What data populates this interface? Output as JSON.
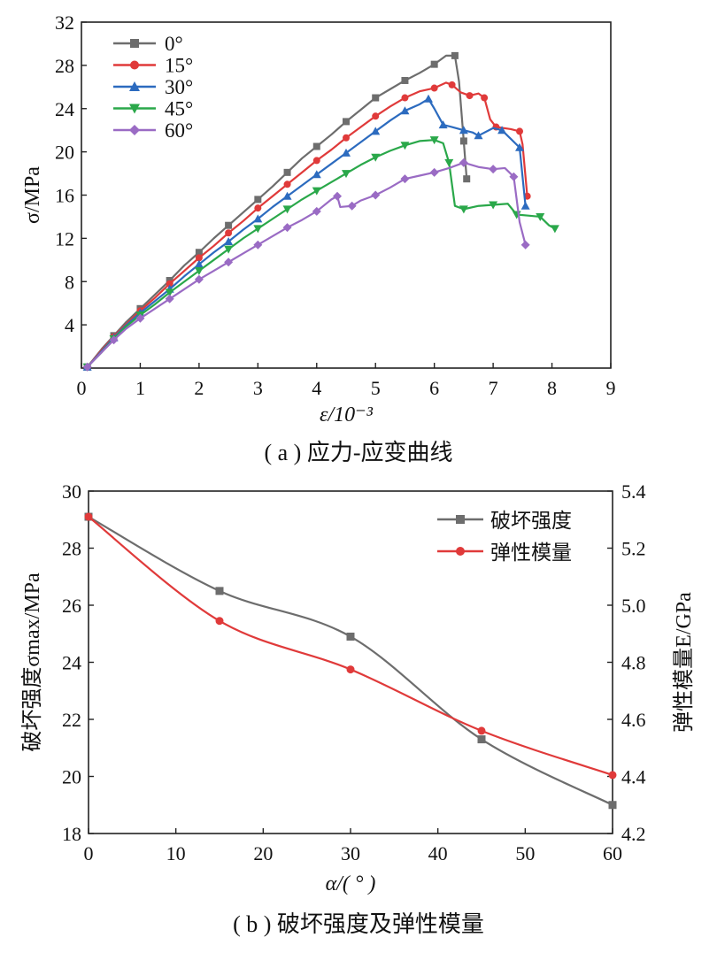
{
  "charts": [
    {
      "caption": "( a ) 应力-应变曲线",
      "chart_data": {
        "type": "line",
        "xlabel": "ε/10⁻³",
        "ylabel": "σ/MPa",
        "xlim": [
          0,
          9
        ],
        "ylim": [
          0,
          32
        ],
        "xticks": [
          0,
          1,
          2,
          3,
          4,
          5,
          6,
          7,
          8,
          9
        ],
        "yticks": [
          4,
          8,
          12,
          16,
          20,
          24,
          28,
          32
        ],
        "legend_position": "top-left",
        "series": [
          {
            "name": "0°",
            "color": "#6d6d6d",
            "marker": "square",
            "points": [
              [
                0.1,
                0.1
              ],
              [
                0.35,
                1.8
              ],
              [
                0.55,
                3
              ],
              [
                0.75,
                4.2
              ],
              [
                1.0,
                5.5
              ],
              [
                1.25,
                6.8
              ],
              [
                1.5,
                8.1
              ],
              [
                1.75,
                9.5
              ],
              [
                2.0,
                10.7
              ],
              [
                2.25,
                12
              ],
              [
                2.5,
                13.2
              ],
              [
                2.75,
                14.4
              ],
              [
                3.0,
                15.6
              ],
              [
                3.25,
                16.8
              ],
              [
                3.5,
                18.1
              ],
              [
                3.75,
                19.4
              ],
              [
                4.0,
                20.5
              ],
              [
                4.25,
                21.6
              ],
              [
                4.5,
                22.8
              ],
              [
                4.75,
                23.9
              ],
              [
                5.0,
                25.0
              ],
              [
                5.25,
                25.8
              ],
              [
                5.5,
                26.6
              ],
              [
                5.75,
                27.3
              ],
              [
                6.0,
                28.1
              ],
              [
                6.2,
                28.9
              ],
              [
                6.35,
                28.9
              ],
              [
                6.42,
                26.5
              ],
              [
                6.5,
                21.0
              ],
              [
                6.55,
                17.5
              ]
            ]
          },
          {
            "name": "15°",
            "color": "#e03a3a",
            "marker": "circle",
            "points": [
              [
                0.1,
                0.1
              ],
              [
                0.35,
                1.7
              ],
              [
                0.55,
                2.9
              ],
              [
                0.75,
                4.0
              ],
              [
                1.0,
                5.3
              ],
              [
                1.25,
                6.5
              ],
              [
                1.5,
                7.8
              ],
              [
                1.75,
                9.0
              ],
              [
                2.0,
                10.2
              ],
              [
                2.25,
                11.3
              ],
              [
                2.5,
                12.5
              ],
              [
                2.75,
                13.6
              ],
              [
                3.0,
                14.8
              ],
              [
                3.25,
                15.9
              ],
              [
                3.5,
                17.0
              ],
              [
                3.75,
                18.1
              ],
              [
                4.0,
                19.2
              ],
              [
                4.25,
                20.2
              ],
              [
                4.5,
                21.3
              ],
              [
                4.75,
                22.3
              ],
              [
                5.0,
                23.3
              ],
              [
                5.25,
                24.2
              ],
              [
                5.5,
                25.0
              ],
              [
                5.75,
                25.6
              ],
              [
                6.0,
                25.9
              ],
              [
                6.2,
                26.4
              ],
              [
                6.3,
                26.2
              ],
              [
                6.45,
                25.5
              ],
              [
                6.6,
                25.2
              ],
              [
                6.75,
                25.4
              ],
              [
                6.85,
                25.0
              ],
              [
                6.95,
                23.0
              ],
              [
                7.05,
                22.3
              ],
              [
                7.3,
                22.1
              ],
              [
                7.45,
                21.9
              ],
              [
                7.5,
                20.7
              ],
              [
                7.58,
                15.9
              ]
            ]
          },
          {
            "name": "30°",
            "color": "#2c6bbf",
            "marker": "triangle",
            "points": [
              [
                0.1,
                0.1
              ],
              [
                0.35,
                1.6
              ],
              [
                0.55,
                2.8
              ],
              [
                0.75,
                3.9
              ],
              [
                1.0,
                5.1
              ],
              [
                1.25,
                6.2
              ],
              [
                1.5,
                7.3
              ],
              [
                1.75,
                8.5
              ],
              [
                2.0,
                9.6
              ],
              [
                2.25,
                10.7
              ],
              [
                2.5,
                11.7
              ],
              [
                2.75,
                12.8
              ],
              [
                3.0,
                13.8
              ],
              [
                3.25,
                14.9
              ],
              [
                3.5,
                15.9
              ],
              [
                3.75,
                16.9
              ],
              [
                4.0,
                17.9
              ],
              [
                4.25,
                18.9
              ],
              [
                4.5,
                19.9
              ],
              [
                4.75,
                20.9
              ],
              [
                5.0,
                21.9
              ],
              [
                5.25,
                22.9
              ],
              [
                5.5,
                23.8
              ],
              [
                5.75,
                24.4
              ],
              [
                5.9,
                24.9
              ],
              [
                6.0,
                24.0
              ],
              [
                6.15,
                22.5
              ],
              [
                6.3,
                22.3
              ],
              [
                6.5,
                22.0
              ],
              [
                6.65,
                21.8
              ],
              [
                6.75,
                21.5
              ],
              [
                7.0,
                22.2
              ],
              [
                7.15,
                22.0
              ],
              [
                7.3,
                21.2
              ],
              [
                7.45,
                20.4
              ],
              [
                7.55,
                15.0
              ]
            ]
          },
          {
            "name": "45°",
            "color": "#2aa84a",
            "marker": "triangle-down",
            "points": [
              [
                0.1,
                0.1
              ],
              [
                0.35,
                1.5
              ],
              [
                0.55,
                2.7
              ],
              [
                0.75,
                3.8
              ],
              [
                1.0,
                4.9
              ],
              [
                1.25,
                5.9
              ],
              [
                1.5,
                7.0
              ],
              [
                1.75,
                8.0
              ],
              [
                2.0,
                9.0
              ],
              [
                2.25,
                10.0
              ],
              [
                2.5,
                11.0
              ],
              [
                2.75,
                12.0
              ],
              [
                3.0,
                12.9
              ],
              [
                3.25,
                13.8
              ],
              [
                3.5,
                14.7
              ],
              [
                3.75,
                15.6
              ],
              [
                4.0,
                16.4
              ],
              [
                4.25,
                17.2
              ],
              [
                4.5,
                18.0
              ],
              [
                4.75,
                18.8
              ],
              [
                5.0,
                19.5
              ],
              [
                5.25,
                20.1
              ],
              [
                5.5,
                20.6
              ],
              [
                5.75,
                21.0
              ],
              [
                6.0,
                21.1
              ],
              [
                6.15,
                20.8
              ],
              [
                6.25,
                19.0
              ],
              [
                6.35,
                15.0
              ],
              [
                6.5,
                14.7
              ],
              [
                6.75,
                15.0
              ],
              [
                7.0,
                15.1
              ],
              [
                7.25,
                15.2
              ],
              [
                7.4,
                14.2
              ],
              [
                7.6,
                14.1
              ],
              [
                7.8,
                14.0
              ],
              [
                7.95,
                13.2
              ],
              [
                8.05,
                12.9
              ]
            ]
          },
          {
            "name": "60°",
            "color": "#9a6bc4",
            "marker": "diamond",
            "points": [
              [
                0.1,
                0.1
              ],
              [
                0.35,
                1.5
              ],
              [
                0.55,
                2.6
              ],
              [
                0.75,
                3.6
              ],
              [
                1.0,
                4.6
              ],
              [
                1.25,
                5.5
              ],
              [
                1.5,
                6.4
              ],
              [
                1.75,
                7.3
              ],
              [
                2.0,
                8.2
              ],
              [
                2.25,
                9.0
              ],
              [
                2.5,
                9.8
              ],
              [
                2.75,
                10.6
              ],
              [
                3.0,
                11.4
              ],
              [
                3.25,
                12.2
              ],
              [
                3.5,
                13.0
              ],
              [
                3.75,
                13.7
              ],
              [
                4.0,
                14.5
              ],
              [
                4.25,
                15.6
              ],
              [
                4.35,
                15.9
              ],
              [
                4.4,
                14.9
              ],
              [
                4.6,
                15.0
              ],
              [
                4.75,
                15.5
              ],
              [
                5.0,
                16.0
              ],
              [
                5.25,
                16.7
              ],
              [
                5.5,
                17.5
              ],
              [
                5.75,
                17.8
              ],
              [
                6.0,
                18.1
              ],
              [
                6.25,
                18.5
              ],
              [
                6.5,
                19.0
              ],
              [
                6.75,
                18.6
              ],
              [
                7.0,
                18.4
              ],
              [
                7.2,
                18.5
              ],
              [
                7.35,
                17.7
              ],
              [
                7.45,
                13.5
              ],
              [
                7.55,
                11.4
              ]
            ]
          }
        ]
      }
    },
    {
      "caption": "( b ) 破坏强度及弹性模量",
      "chart_data": {
        "type": "line",
        "xlabel": "α/( ° )",
        "ylabel": "破坏强度σmax/MPa",
        "ylabel_right": "弹性模量E/GPa",
        "xlim": [
          0,
          60
        ],
        "ylim": [
          18,
          30
        ],
        "ylim_right": [
          4.2,
          5.4
        ],
        "xticks": [
          0,
          10,
          20,
          30,
          40,
          50,
          60
        ],
        "yticks": [
          18,
          20,
          22,
          24,
          26,
          28,
          30
        ],
        "yticks_right": [
          "4.2",
          "4.4",
          "4.6",
          "4.8",
          "5.0",
          "5.2",
          "5.4"
        ],
        "legend_position": "top-right",
        "categories": [
          0,
          15,
          30,
          45,
          60
        ],
        "series": [
          {
            "name": "破坏强度",
            "axis": "left",
            "color": "#6d6d6d",
            "marker": "square",
            "values": [
              29.1,
              26.5,
              24.9,
              21.3,
              19.0
            ]
          },
          {
            "name": "弹性模量",
            "axis": "right",
            "color": "#e03a3a",
            "marker": "circle",
            "values": [
              5.31,
              4.945,
              4.775,
              4.56,
              4.405
            ]
          }
        ]
      }
    }
  ]
}
